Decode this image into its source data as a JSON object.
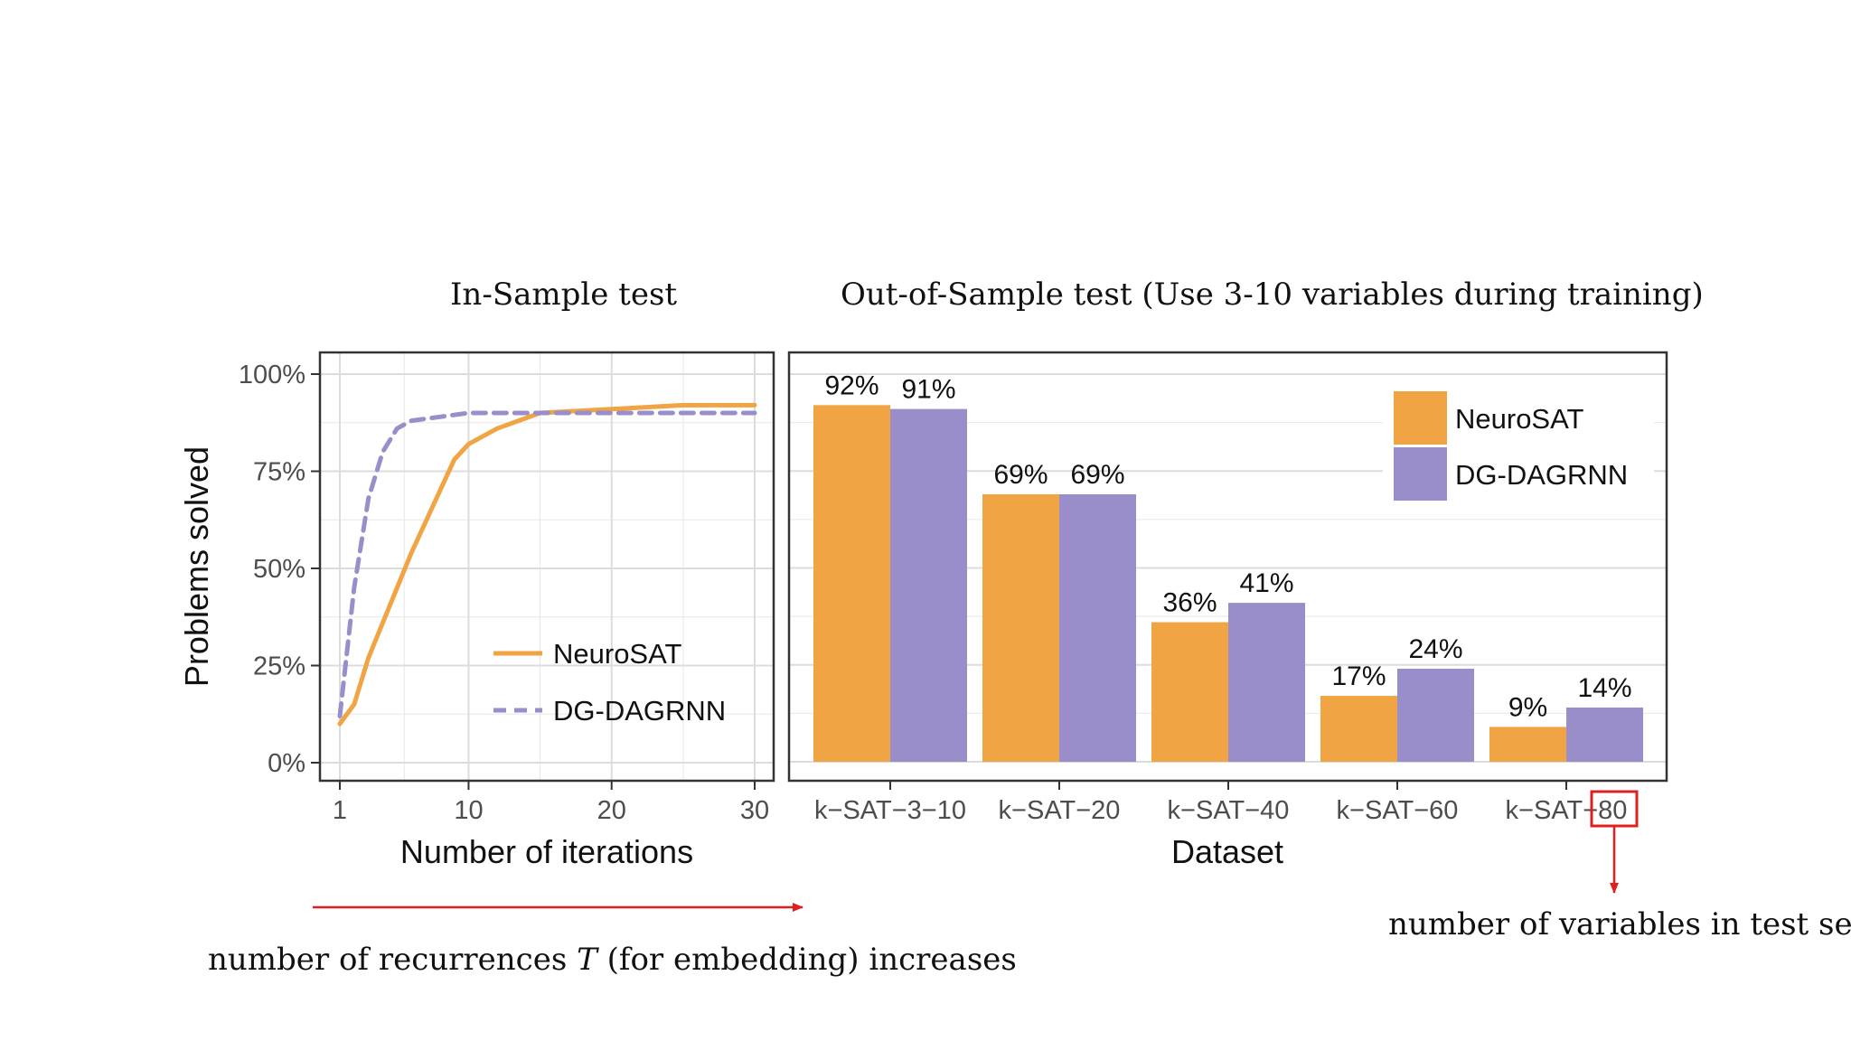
{
  "titles": {
    "left": "In-Sample test",
    "right": "Out-of-Sample test (Use 3-10 variables during training)"
  },
  "annotations": {
    "bottom_left_prefix": "number of recurrences ",
    "bottom_left_var": "T",
    "bottom_left_suffix": " (for embedding) increases",
    "bottom_right": "number of variables in test set"
  },
  "colors": {
    "neurosat": "#F0A444",
    "dgdagrnn": "#998ECA",
    "arrow": "#E0201F",
    "grid": "#E8E8E8"
  },
  "chart_data": [
    {
      "type": "line",
      "xlabel": "Number of iterations",
      "ylabel": "Problems solved",
      "xticks": [
        1,
        10,
        20,
        30
      ],
      "xlim": [
        1,
        30
      ],
      "yticks": [
        "0%",
        "25%",
        "50%",
        "75%",
        "100%"
      ],
      "ylim": [
        0,
        100
      ],
      "grid": true,
      "legend_position": "bottom-right",
      "series": [
        {
          "name": "NeuroSAT",
          "style": "solid",
          "x": [
            1,
            2,
            3,
            4,
            5,
            6,
            7,
            8,
            9,
            10,
            12,
            15,
            20,
            25,
            30
          ],
          "y": [
            10,
            15,
            27,
            36,
            45,
            54,
            62,
            70,
            78,
            82,
            86,
            90,
            91,
            92,
            92
          ]
        },
        {
          "name": "DG-DAGRNN",
          "style": "dashed",
          "x": [
            1,
            2,
            3,
            4,
            5,
            6,
            8,
            10,
            15,
            20,
            30
          ],
          "y": [
            12,
            45,
            68,
            80,
            86,
            88,
            89,
            90,
            90,
            90,
            90
          ]
        }
      ]
    },
    {
      "type": "bar",
      "xlabel": "Dataset",
      "categories": [
        "k−SAT−3−10",
        "k−SAT−20",
        "k−SAT−40",
        "k−SAT−60",
        "k−SAT−80"
      ],
      "highlight": "80",
      "ylim": [
        0,
        100
      ],
      "grid": true,
      "legend_position": "top-right",
      "series": [
        {
          "name": "NeuroSAT",
          "values": [
            92,
            69,
            36,
            17,
            9
          ],
          "labels": [
            "92%",
            "69%",
            "36%",
            "17%",
            "9%"
          ]
        },
        {
          "name": "DG-DAGRNN",
          "values": [
            91,
            69,
            41,
            24,
            14
          ],
          "labels": [
            "91%",
            "69%",
            "41%",
            "24%",
            "14%"
          ]
        }
      ]
    }
  ]
}
